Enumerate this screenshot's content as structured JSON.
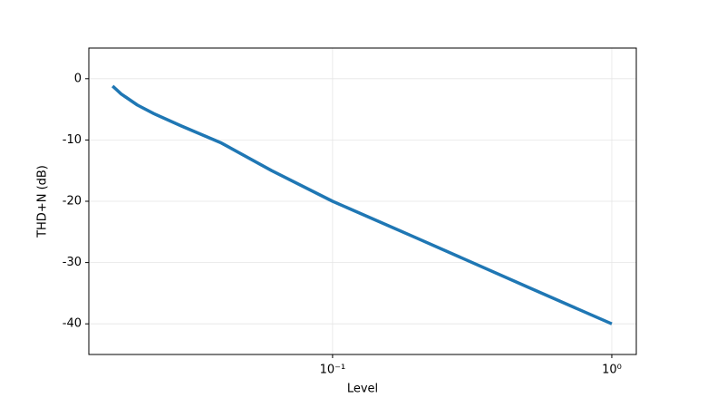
{
  "chart_data": {
    "type": "line",
    "x_label": "Level",
    "y_label": "THD+N (dB)",
    "x": [
      0.0163,
      0.0175,
      0.0183,
      0.02,
      0.0229,
      0.0287,
      0.04,
      0.0605,
      0.1,
      0.2,
      0.5,
      1.0
    ],
    "series": [
      {
        "name": "THD+N",
        "color": "#1f77b4",
        "values": [
          -1.2,
          -2.5,
          -3.1,
          -4.3,
          -5.7,
          -7.7,
          -10.5,
          -15.0,
          -20.0,
          -26.0,
          -34.0,
          -40.0
        ]
      }
    ],
    "xscale": "log",
    "xlim": [
      0.0134,
      1.224
    ],
    "xticks": [
      {
        "value": 0.1,
        "label": "10⁻¹"
      },
      {
        "value": 1,
        "label": "10⁰"
      }
    ],
    "ylim": [
      -45,
      5
    ],
    "yticks": [
      0,
      -10,
      -20,
      -30,
      -40
    ],
    "grid": true
  }
}
